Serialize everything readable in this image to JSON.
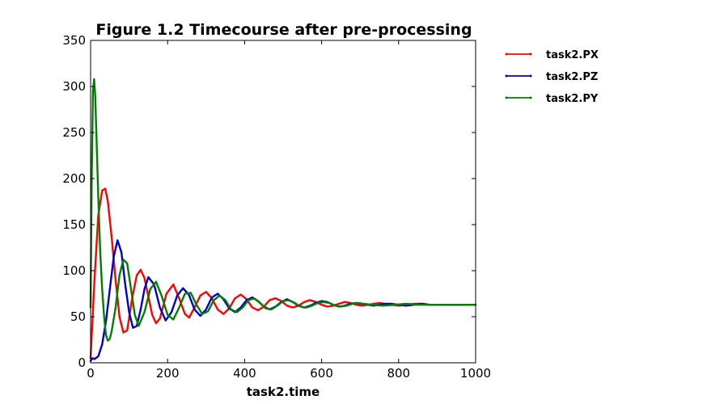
{
  "chart_data": {
    "type": "line",
    "title": "Figure 1.2 Timecourse after pre-processing",
    "xlabel": "task2.time",
    "ylabel": "",
    "xlim": [
      0,
      1000
    ],
    "ylim": [
      0,
      350
    ],
    "x_ticks": [
      "0",
      "200",
      "400",
      "600",
      "800",
      "1000"
    ],
    "y_ticks": [
      "0",
      "50",
      "100",
      "150",
      "200",
      "250",
      "300",
      "350"
    ],
    "grid": false,
    "legend_position": "outside-top-right",
    "series": [
      {
        "name": "task2.PX",
        "color": "#ff0000",
        "x": [
          0,
          10,
          20,
          30,
          38,
          45,
          55,
          65,
          75,
          85,
          95,
          108,
          120,
          130,
          140,
          150,
          160,
          170,
          180,
          197,
          215,
          230,
          245,
          256,
          270,
          285,
          300,
          315,
          330,
          345,
          360,
          375,
          390,
          405,
          420,
          435,
          450,
          465,
          480,
          495,
          510,
          525,
          540,
          555,
          570,
          585,
          600,
          615,
          630,
          645,
          660,
          675,
          690,
          705,
          720,
          735,
          750,
          765,
          780,
          800,
          820,
          840,
          860,
          880,
          900,
          920,
          940,
          960,
          980,
          1000
        ],
        "y": [
          5,
          90,
          160,
          187,
          189,
          175,
          135,
          90,
          50,
          33,
          35,
          70,
          95,
          101,
          92,
          72,
          52,
          43,
          48,
          75,
          85,
          70,
          53,
          49,
          60,
          73,
          77,
          70,
          58,
          53,
          59,
          70,
          74,
          69,
          60,
          57,
          61,
          68,
          70,
          67,
          62,
          60,
          62,
          66,
          68,
          66,
          63,
          61,
          62,
          64,
          66,
          65,
          63,
          62,
          63,
          64,
          65,
          64,
          63,
          62,
          63,
          64,
          64,
          63,
          63,
          63,
          63,
          63,
          63,
          63
        ]
      },
      {
        "name": "task2.PZ",
        "color": "#0000cc",
        "x": [
          0,
          5,
          10,
          20,
          30,
          40,
          50,
          60,
          70,
          80,
          90,
          100,
          110,
          120,
          130,
          140,
          150,
          165,
          180,
          195,
          210,
          225,
          240,
          255,
          270,
          285,
          300,
          315,
          330,
          345,
          360,
          375,
          390,
          405,
          420,
          435,
          450,
          465,
          480,
          495,
          510,
          525,
          540,
          555,
          570,
          585,
          600,
          615,
          630,
          645,
          660,
          675,
          690,
          705,
          720,
          735,
          750,
          765,
          780,
          800,
          820,
          840,
          860,
          880,
          900,
          920,
          940,
          960,
          980,
          1000
        ],
        "y": [
          2,
          5,
          4,
          7,
          20,
          45,
          80,
          115,
          133,
          120,
          85,
          55,
          38,
          40,
          58,
          80,
          93,
          85,
          60,
          46,
          55,
          73,
          81,
          74,
          58,
          51,
          58,
          71,
          75,
          69,
          59,
          55,
          60,
          68,
          71,
          67,
          61,
          58,
          61,
          66,
          69,
          66,
          62,
          60,
          62,
          65,
          67,
          66,
          63,
          61,
          62,
          64,
          65,
          64,
          63,
          62,
          63,
          64,
          64,
          63,
          62,
          63,
          64,
          63,
          63,
          63,
          63,
          63,
          63,
          63
        ]
      },
      {
        "name": "task2.PY",
        "color": "#008000",
        "x": [
          0,
          3,
          6,
          9,
          12,
          15,
          20,
          25,
          30,
          35,
          40,
          45,
          50,
          55,
          65,
          75,
          85,
          95,
          105,
          115,
          125,
          140,
          155,
          170,
          185,
          200,
          215,
          230,
          245,
          260,
          275,
          290,
          305,
          320,
          335,
          350,
          365,
          380,
          395,
          410,
          425,
          440,
          455,
          470,
          485,
          500,
          515,
          530,
          545,
          560,
          575,
          590,
          605,
          620,
          635,
          650,
          665,
          680,
          695,
          710,
          730,
          760,
          790,
          820,
          850,
          880,
          910,
          940,
          970,
          1000
        ],
        "y": [
          60,
          200,
          295,
          308,
          290,
          250,
          180,
          120,
          80,
          50,
          30,
          24,
          26,
          35,
          60,
          95,
          112,
          108,
          80,
          52,
          40,
          55,
          80,
          88,
          72,
          52,
          47,
          60,
          75,
          76,
          63,
          53,
          56,
          68,
          73,
          68,
          58,
          55,
          60,
          68,
          70,
          65,
          59,
          58,
          62,
          67,
          68,
          65,
          61,
          60,
          62,
          65,
          66,
          65,
          62,
          61,
          62,
          64,
          65,
          64,
          63,
          62,
          63,
          64,
          63,
          63,
          63,
          63,
          63,
          63
        ]
      }
    ]
  }
}
